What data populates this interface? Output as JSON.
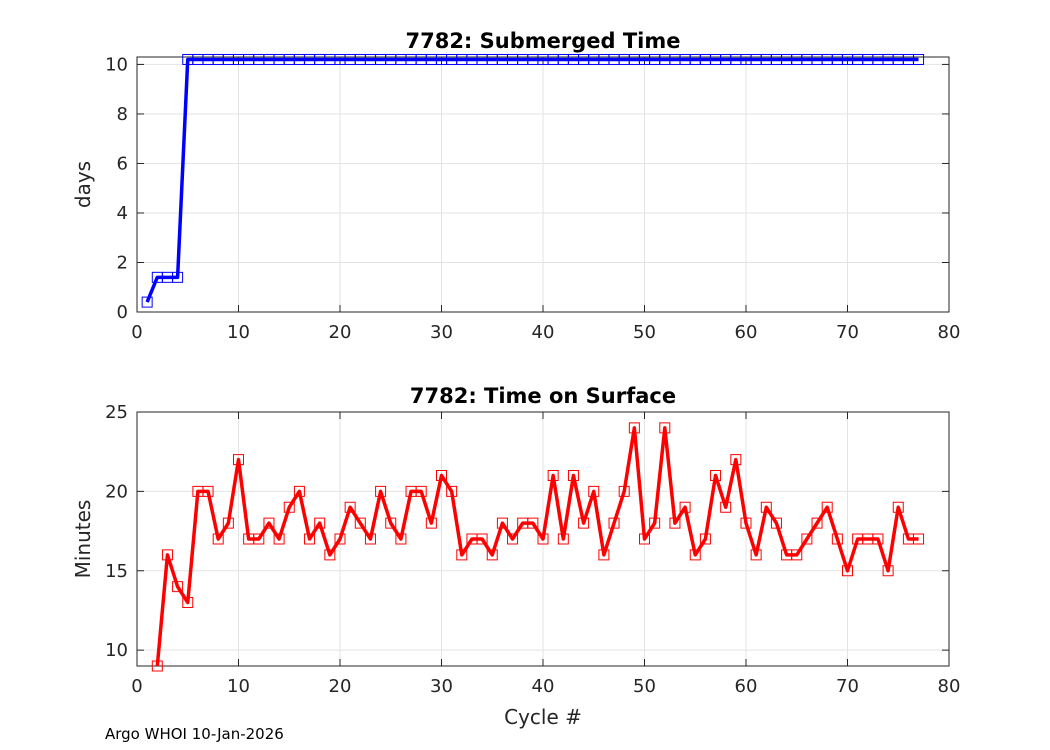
{
  "footer": "Argo WHOI 10-Jan-2026",
  "chart_data": [
    {
      "type": "line",
      "title": "7782: Submerged Time",
      "xlabel": "",
      "ylabel": "days",
      "xlim": [
        0,
        80
      ],
      "ylim": [
        0,
        10.3
      ],
      "xticks": [
        0,
        10,
        20,
        30,
        40,
        50,
        60,
        70,
        80
      ],
      "yticks": [
        0,
        2,
        4,
        6,
        8,
        10
      ],
      "grid": true,
      "color": "#0000ff",
      "marker": "square",
      "series": [
        {
          "x": [
            1,
            2,
            3,
            4,
            5,
            6,
            7,
            8,
            9,
            10,
            11,
            12,
            13,
            14,
            15,
            16,
            17,
            18,
            19,
            20,
            21,
            22,
            23,
            24,
            25,
            26,
            27,
            28,
            29,
            30,
            31,
            32,
            33,
            34,
            35,
            36,
            37,
            38,
            39,
            40,
            41,
            42,
            43,
            44,
            45,
            46,
            47,
            48,
            49,
            50,
            51,
            52,
            53,
            54,
            55,
            56,
            57,
            58,
            59,
            60,
            61,
            62,
            63,
            64,
            65,
            66,
            67,
            68,
            69,
            70,
            71,
            72,
            73,
            74,
            75,
            76,
            77
          ],
          "values": [
            0.4,
            1.4,
            1.4,
            1.4,
            10.2,
            10.2,
            10.2,
            10.2,
            10.2,
            10.2,
            10.2,
            10.2,
            10.2,
            10.2,
            10.2,
            10.2,
            10.2,
            10.2,
            10.2,
            10.2,
            10.2,
            10.2,
            10.2,
            10.2,
            10.2,
            10.2,
            10.2,
            10.2,
            10.2,
            10.2,
            10.2,
            10.2,
            10.2,
            10.2,
            10.2,
            10.2,
            10.2,
            10.2,
            10.2,
            10.2,
            10.2,
            10.2,
            10.2,
            10.2,
            10.2,
            10.2,
            10.2,
            10.2,
            10.2,
            10.2,
            10.2,
            10.2,
            10.2,
            10.2,
            10.2,
            10.2,
            10.2,
            10.2,
            10.2,
            10.2,
            10.2,
            10.2,
            10.2,
            10.2,
            10.2,
            10.2,
            10.2,
            10.2,
            10.2,
            10.2,
            10.2,
            10.2,
            10.2,
            10.2,
            10.2,
            10.2,
            10.2
          ]
        }
      ]
    },
    {
      "type": "line",
      "title": "7782: Time on Surface",
      "xlabel": "Cycle #",
      "ylabel": "Minutes",
      "xlim": [
        0,
        80
      ],
      "ylim": [
        9,
        25
      ],
      "xticks": [
        0,
        10,
        20,
        30,
        40,
        50,
        60,
        70,
        80
      ],
      "yticks": [
        10,
        15,
        20,
        25
      ],
      "grid": true,
      "color": "#ff0000",
      "marker": "square",
      "series": [
        {
          "x": [
            2,
            3,
            4,
            5,
            6,
            7,
            8,
            9,
            10,
            11,
            12,
            13,
            14,
            15,
            16,
            17,
            18,
            19,
            20,
            21,
            22,
            23,
            24,
            25,
            26,
            27,
            28,
            29,
            30,
            31,
            32,
            33,
            34,
            35,
            36,
            37,
            38,
            39,
            40,
            41,
            42,
            43,
            44,
            45,
            46,
            47,
            48,
            49,
            50,
            51,
            52,
            53,
            54,
            55,
            56,
            57,
            58,
            59,
            60,
            61,
            62,
            63,
            64,
            65,
            66,
            67,
            68,
            69,
            70,
            71,
            72,
            73,
            74,
            75,
            76,
            77
          ],
          "values": [
            9,
            16,
            14,
            13,
            20,
            20,
            17,
            18,
            22,
            17,
            17,
            18,
            17,
            19,
            20,
            17,
            18,
            16,
            17,
            19,
            18,
            17,
            20,
            18,
            17,
            20,
            20,
            18,
            21,
            20,
            16,
            17,
            17,
            16,
            18,
            17,
            18,
            18,
            17,
            21,
            17,
            21,
            18,
            20,
            16,
            18,
            20,
            24,
            17,
            18,
            24,
            18,
            19,
            16,
            17,
            21,
            19,
            22,
            18,
            16,
            19,
            18,
            16,
            16,
            17,
            18,
            19,
            17,
            15,
            17,
            17,
            17,
            15,
            19,
            17,
            17
          ]
        }
      ]
    }
  ]
}
